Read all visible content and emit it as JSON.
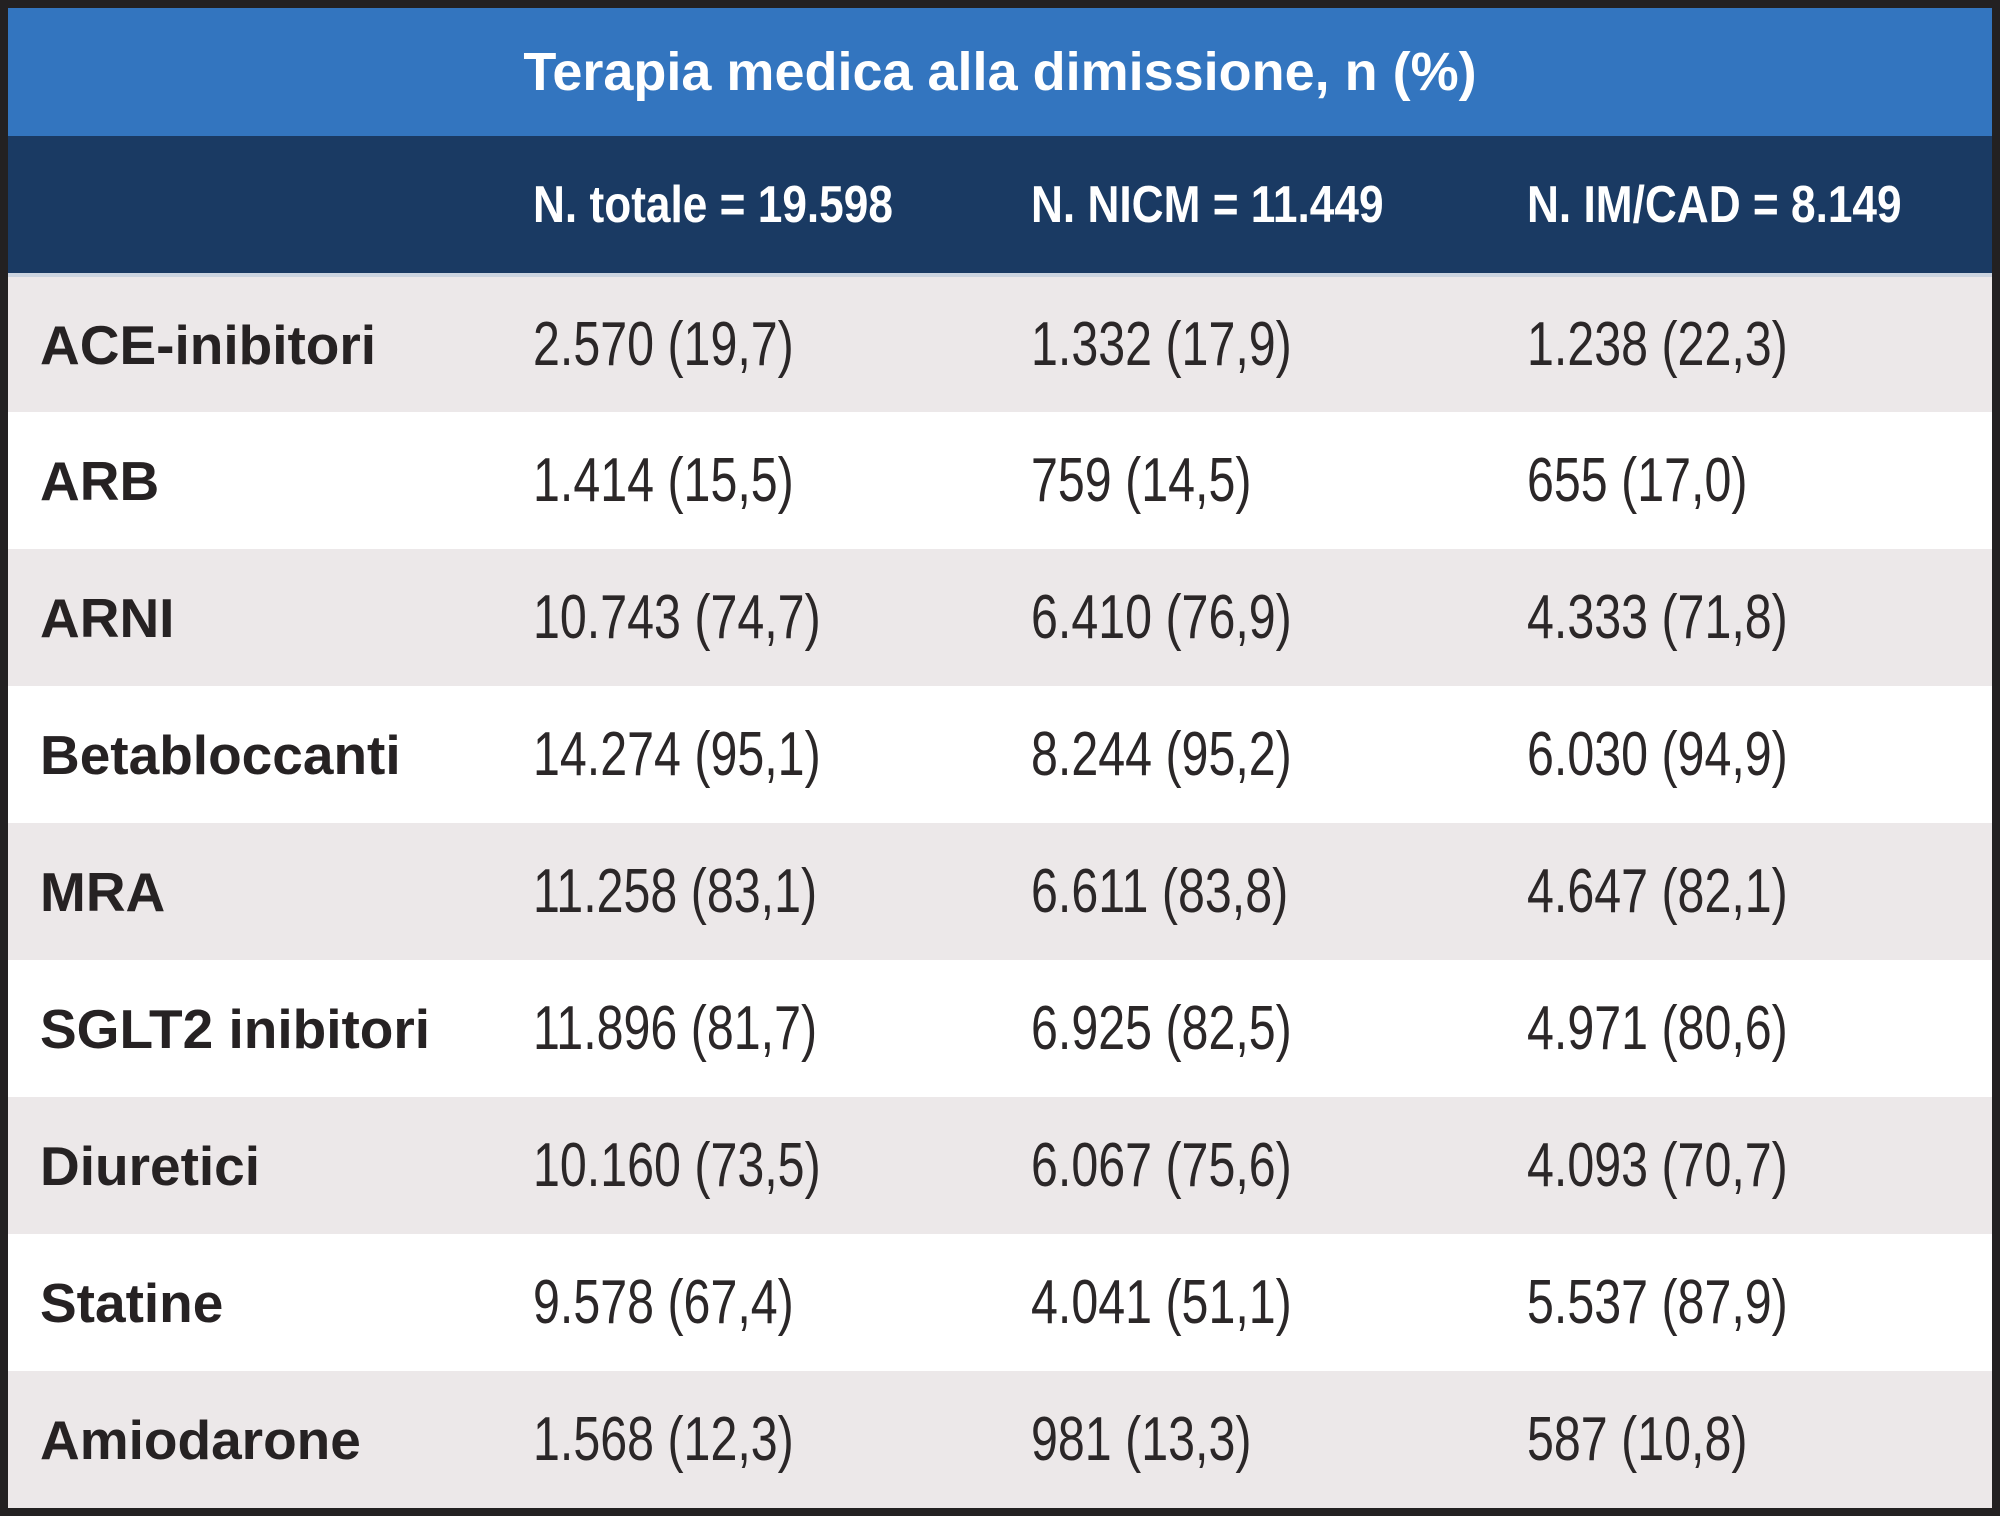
{
  "colors": {
    "frame_border": "#232122",
    "title_bar_bg": "#3375bf",
    "header_bar_bg": "#1a3a63",
    "row_stripe_bg": "#ece8e9",
    "row_plain_bg": "#ffffff",
    "header_text": "#ffffff",
    "body_text": "#262223"
  },
  "chart_data": {
    "type": "table",
    "title": "Terapia medica alla dimissione, n (%)",
    "value_format": "n (%)",
    "columns": [
      "N. totale = 19.598",
      "N. NICM = 11.449",
      "N. IM/CAD = 8.149"
    ],
    "group_sizes": {
      "totale": 19598,
      "nicm": 11449,
      "im_cad": 8149
    },
    "rows": [
      {
        "label": "ACE-inibitori",
        "cells": [
          {
            "text": "2.570 (19,7)",
            "n": 2570,
            "pct": 19.7
          },
          {
            "text": "1.332 (17,9)",
            "n": 1332,
            "pct": 17.9
          },
          {
            "text": "1.238 (22,3)",
            "n": 1238,
            "pct": 22.3
          }
        ]
      },
      {
        "label": "ARB",
        "cells": [
          {
            "text": "1.414 (15,5)",
            "n": 1414,
            "pct": 15.5
          },
          {
            "text": "759 (14,5)",
            "n": 759,
            "pct": 14.5
          },
          {
            "text": "655 (17,0)",
            "n": 655,
            "pct": 17.0
          }
        ]
      },
      {
        "label": "ARNI",
        "cells": [
          {
            "text": "10.743 (74,7)",
            "n": 10743,
            "pct": 74.7
          },
          {
            "text": "6.410 (76,9)",
            "n": 6410,
            "pct": 76.9
          },
          {
            "text": "4.333 (71,8)",
            "n": 4333,
            "pct": 71.8
          }
        ]
      },
      {
        "label": "Betabloccanti",
        "cells": [
          {
            "text": "14.274 (95,1)",
            "n": 14274,
            "pct": 95.1
          },
          {
            "text": "8.244 (95,2)",
            "n": 8244,
            "pct": 95.2
          },
          {
            "text": "6.030 (94,9)",
            "n": 6030,
            "pct": 94.9
          }
        ]
      },
      {
        "label": "MRA",
        "cells": [
          {
            "text": "11.258 (83,1)",
            "n": 11258,
            "pct": 83.1
          },
          {
            "text": "6.611 (83,8)",
            "n": 6611,
            "pct": 83.8
          },
          {
            "text": "4.647 (82,1)",
            "n": 4647,
            "pct": 82.1
          }
        ]
      },
      {
        "label": "SGLT2 inibitori",
        "cells": [
          {
            "text": "11.896 (81,7)",
            "n": 11896,
            "pct": 81.7
          },
          {
            "text": "6.925 (82,5)",
            "n": 6925,
            "pct": 82.5
          },
          {
            "text": "4.971 (80,6)",
            "n": 4971,
            "pct": 80.6
          }
        ]
      },
      {
        "label": "Diuretici",
        "cells": [
          {
            "text": "10.160 (73,5)",
            "n": 10160,
            "pct": 73.5
          },
          {
            "text": "6.067 (75,6)",
            "n": 6067,
            "pct": 75.6
          },
          {
            "text": "4.093 (70,7)",
            "n": 4093,
            "pct": 70.7
          }
        ]
      },
      {
        "label": "Statine",
        "cells": [
          {
            "text": "9.578 (67,4)",
            "n": 9578,
            "pct": 67.4
          },
          {
            "text": "4.041 (51,1)",
            "n": 4041,
            "pct": 51.1
          },
          {
            "text": "5.537 (87,9)",
            "n": 5537,
            "pct": 87.9
          }
        ]
      },
      {
        "label": "Amiodarone",
        "cells": [
          {
            "text": "1.568 (12,3)",
            "n": 1568,
            "pct": 12.3
          },
          {
            "text": "981 (13,3)",
            "n": 981,
            "pct": 13.3
          },
          {
            "text": "587 (10,8)",
            "n": 587,
            "pct": 10.8
          }
        ]
      }
    ]
  }
}
